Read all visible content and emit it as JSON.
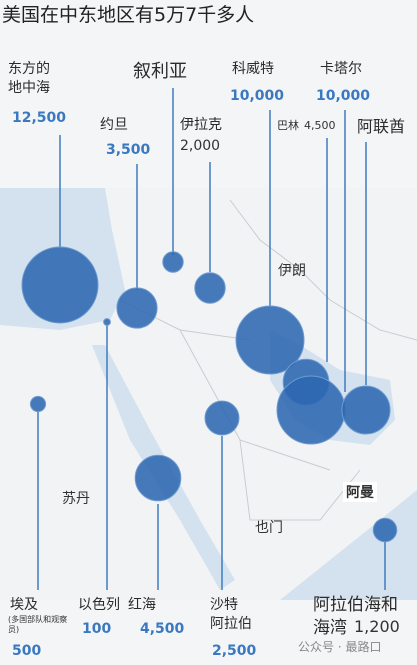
{
  "title": "美国在中东地区有5万7千多人",
  "locations": [
    {
      "name": "东方的\n地中海",
      "value": 12500,
      "value_label": "12,500"
    },
    {
      "name": "约旦",
      "value": 3500,
      "value_label": "3,500"
    },
    {
      "name": "叙利亚",
      "value": 900
    },
    {
      "name": "伊拉克",
      "value": 2000,
      "value_label": "2,000"
    },
    {
      "name": "科威特",
      "value": 10000,
      "value_label": "10,000"
    },
    {
      "name": "巴林",
      "value": 4500,
      "value_label": "4,500"
    },
    {
      "name": "卡塔尔",
      "value": 10000,
      "value_label": "10,000"
    },
    {
      "name": "阿联酋",
      "value": 5000
    },
    {
      "name": "埃及",
      "note": "(多国部队和观察员)",
      "value": 500,
      "value_label": "500"
    },
    {
      "name": "以色列",
      "value": 100,
      "value_label": "100"
    },
    {
      "name": "红海",
      "value": 4500,
      "value_label": "4,500"
    },
    {
      "name": "沙特\n阿拉伯",
      "value": 2500,
      "value_label": "2,500"
    },
    {
      "name": "阿拉伯海和\n海湾",
      "value": 1200,
      "value_label": "1,200"
    }
  ],
  "map_labels": [
    "伊朗",
    "苏丹",
    "也门",
    "阿曼"
  ],
  "watermark": "公众号 · 最路口"
}
